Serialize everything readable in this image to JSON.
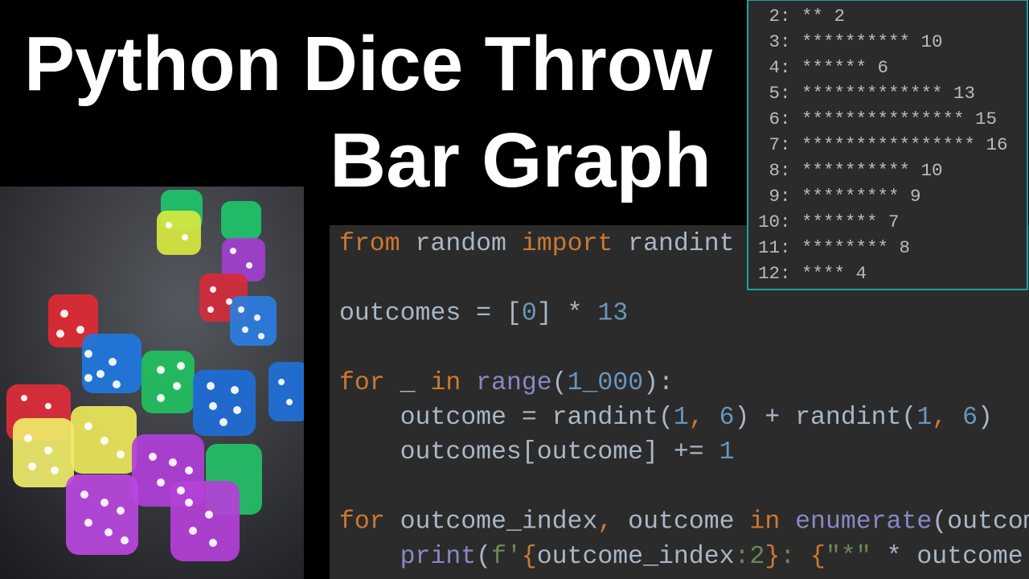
{
  "title": {
    "line1": "Python Dice Throw",
    "line2": "Bar Graph"
  },
  "output": {
    "lines": [
      " 2: ** 2",
      " 3: ********** 10",
      " 4: ****** 6",
      " 5: ************* 13",
      " 6: *************** 15",
      " 7: **************** 16",
      " 8: ********** 10",
      " 9: ********* 9",
      "10: ******* 7",
      "11: ******** 8",
      "12: **** 4"
    ]
  },
  "code": {
    "lines": [
      {
        "tokens": [
          {
            "text": "from",
            "color": "#cc7832"
          },
          {
            "text": " random ",
            "color": "#a9b7c6"
          },
          {
            "text": "import",
            "color": "#cc7832"
          },
          {
            "text": " randint",
            "color": "#a9b7c6"
          }
        ]
      },
      {
        "tokens": []
      },
      {
        "tokens": [
          {
            "text": "outcomes = [",
            "color": "#a9b7c6"
          },
          {
            "text": "0",
            "color": "#6897bb"
          },
          {
            "text": "] * ",
            "color": "#a9b7c6"
          },
          {
            "text": "13",
            "color": "#6897bb"
          }
        ]
      },
      {
        "tokens": []
      },
      {
        "tokens": [
          {
            "text": "for",
            "color": "#cc7832"
          },
          {
            "text": " _ ",
            "color": "#a9b7c6"
          },
          {
            "text": "in",
            "color": "#cc7832"
          },
          {
            "text": " ",
            "color": "#a9b7c6"
          },
          {
            "text": "range",
            "color": "#8888c6"
          },
          {
            "text": "(",
            "color": "#a9b7c6"
          },
          {
            "text": "1_000",
            "color": "#6897bb"
          },
          {
            "text": "):",
            "color": "#a9b7c6"
          }
        ]
      },
      {
        "tokens": [
          {
            "text": "    outcome = randint(",
            "color": "#a9b7c6"
          },
          {
            "text": "1",
            "color": "#6897bb"
          },
          {
            "text": ", ",
            "color": "#cc7832"
          },
          {
            "text": "6",
            "color": "#6897bb"
          },
          {
            "text": ") + randint(",
            "color": "#a9b7c6"
          },
          {
            "text": "1",
            "color": "#6897bb"
          },
          {
            "text": ", ",
            "color": "#cc7832"
          },
          {
            "text": "6",
            "color": "#6897bb"
          },
          {
            "text": ")",
            "color": "#a9b7c6"
          }
        ]
      },
      {
        "tokens": [
          {
            "text": "    outcomes[outcome] += ",
            "color": "#a9b7c6"
          },
          {
            "text": "1",
            "color": "#6897bb"
          }
        ]
      },
      {
        "tokens": []
      },
      {
        "tokens": [
          {
            "text": "for",
            "color": "#cc7832"
          },
          {
            "text": " outcome_index",
            "color": "#a9b7c6"
          },
          {
            "text": ",",
            "color": "#cc7832"
          },
          {
            "text": " outcome ",
            "color": "#a9b7c6"
          },
          {
            "text": "in",
            "color": "#cc7832"
          },
          {
            "text": " ",
            "color": "#a9b7c6"
          },
          {
            "text": "enumerate",
            "color": "#8888c6"
          },
          {
            "text": "(outcom",
            "color": "#a9b7c6"
          }
        ]
      },
      {
        "tokens": [
          {
            "text": "    ",
            "color": "#a9b7c6"
          },
          {
            "text": "print",
            "color": "#8888c6"
          },
          {
            "text": "(",
            "color": "#a9b7c6"
          },
          {
            "text": "f'",
            "color": "#6a8759"
          },
          {
            "text": "{",
            "color": "#cc7832"
          },
          {
            "text": "outcome_index",
            "color": "#a9b7c6"
          },
          {
            "text": ":2",
            "color": "#6a8759"
          },
          {
            "text": "}",
            "color": "#cc7832"
          },
          {
            "text": ": ",
            "color": "#6a8759"
          },
          {
            "text": "{",
            "color": "#cc7832"
          },
          {
            "text": "\"*\"",
            "color": "#6a8759"
          },
          {
            "text": " * outcome",
            "color": "#a9b7c6"
          }
        ]
      }
    ]
  }
}
